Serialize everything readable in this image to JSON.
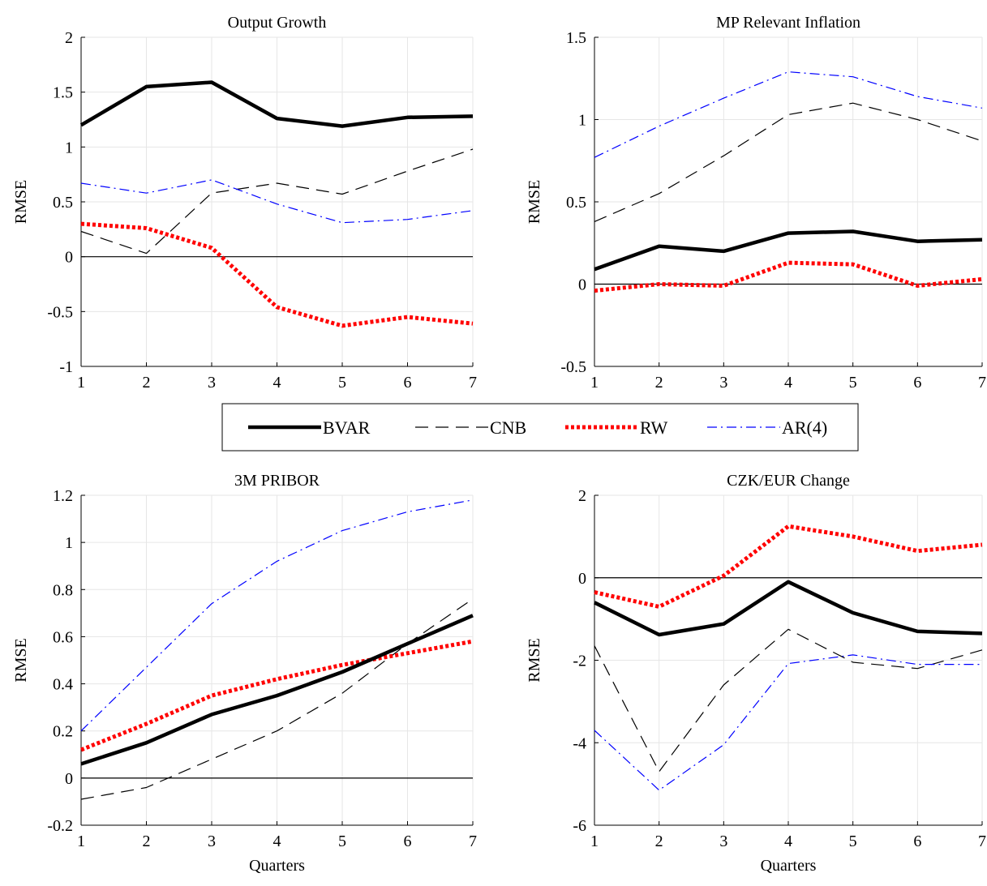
{
  "legend": {
    "entries": [
      "BVAR",
      "CNB",
      "RW",
      "AR(4)"
    ],
    "placement": "center between rows"
  },
  "series_styles": {
    "BVAR": {
      "color": "#000000",
      "dash": "solid",
      "weight": "thick"
    },
    "CNB": {
      "color": "#000000",
      "dash": "long-dash",
      "weight": "thin"
    },
    "RW": {
      "color": "#ff0000",
      "dash": "dotted",
      "weight": "thick"
    },
    "AR(4)": {
      "color": "#0000ff",
      "dash": "dash-dot",
      "weight": "thin"
    }
  },
  "chart_data": [
    {
      "type": "line",
      "title": "Output Growth",
      "xlabel": "",
      "ylabel": "RMSE",
      "x": [
        1,
        2,
        3,
        4,
        5,
        6,
        7
      ],
      "xlim": [
        1,
        7
      ],
      "ylim": [
        -1,
        2
      ],
      "yticks": [
        -1,
        -0.5,
        0,
        0.5,
        1,
        1.5,
        2
      ],
      "ytick_labels": [
        "-1",
        "-0.5",
        "0",
        "0.5",
        "1",
        "1.5",
        "2"
      ],
      "grid": true,
      "zero_line": true,
      "series": [
        {
          "name": "BVAR",
          "values": [
            1.2,
            1.55,
            1.59,
            1.26,
            1.19,
            1.27,
            1.28
          ]
        },
        {
          "name": "CNB",
          "values": [
            0.23,
            0.03,
            0.58,
            0.67,
            0.57,
            0.78,
            0.98
          ]
        },
        {
          "name": "RW",
          "values": [
            0.3,
            0.26,
            0.08,
            -0.46,
            -0.63,
            -0.55,
            -0.61
          ]
        },
        {
          "name": "AR(4)",
          "values": [
            0.67,
            0.58,
            0.7,
            0.48,
            0.31,
            0.34,
            0.42
          ]
        }
      ]
    },
    {
      "type": "line",
      "title": "MP Relevant Inflation",
      "xlabel": "",
      "ylabel": "RMSE",
      "x": [
        1,
        2,
        3,
        4,
        5,
        6,
        7
      ],
      "xlim": [
        1,
        7
      ],
      "ylim": [
        -0.5,
        1.5
      ],
      "yticks": [
        -0.5,
        0,
        0.5,
        1,
        1.5
      ],
      "ytick_labels": [
        "-0.5",
        "0",
        "0.5",
        "1",
        "1.5"
      ],
      "grid": true,
      "zero_line": true,
      "series": [
        {
          "name": "BVAR",
          "values": [
            0.09,
            0.23,
            0.2,
            0.31,
            0.32,
            0.26,
            0.27
          ]
        },
        {
          "name": "CNB",
          "values": [
            0.38,
            0.55,
            0.78,
            1.03,
            1.1,
            1.0,
            0.87
          ]
        },
        {
          "name": "RW",
          "values": [
            -0.04,
            0.0,
            -0.01,
            0.13,
            0.12,
            -0.01,
            0.03
          ]
        },
        {
          "name": "AR(4)",
          "values": [
            0.77,
            0.96,
            1.13,
            1.29,
            1.26,
            1.14,
            1.07
          ]
        }
      ]
    },
    {
      "type": "line",
      "title": "3M PRIBOR",
      "xlabel": "Quarters",
      "ylabel": "RMSE",
      "x": [
        1,
        2,
        3,
        4,
        5,
        6,
        7
      ],
      "xlim": [
        1,
        7
      ],
      "ylim": [
        -0.2,
        1.2
      ],
      "yticks": [
        -0.2,
        0,
        0.2,
        0.4,
        0.6,
        0.8,
        1,
        1.2
      ],
      "ytick_labels": [
        "-0.2",
        "0",
        "0.2",
        "0.4",
        "0.6",
        "0.8",
        "1",
        "1.2"
      ],
      "grid": true,
      "zero_line": true,
      "series": [
        {
          "name": "BVAR",
          "values": [
            0.06,
            0.15,
            0.27,
            0.35,
            0.45,
            0.57,
            0.69
          ]
        },
        {
          "name": "CNB",
          "values": [
            -0.09,
            -0.04,
            0.08,
            0.2,
            0.36,
            0.57,
            0.76
          ]
        },
        {
          "name": "RW",
          "values": [
            0.12,
            0.23,
            0.35,
            0.42,
            0.48,
            0.53,
            0.58
          ]
        },
        {
          "name": "AR(4)",
          "values": [
            0.2,
            0.47,
            0.74,
            0.92,
            1.05,
            1.13,
            1.18
          ]
        }
      ]
    },
    {
      "type": "line",
      "title": "CZK/EUR Change",
      "xlabel": "Quarters",
      "ylabel": "RMSE",
      "x": [
        1,
        2,
        3,
        4,
        5,
        6,
        7
      ],
      "xlim": [
        1,
        7
      ],
      "ylim": [
        -6,
        2
      ],
      "yticks": [
        -6,
        -4,
        -2,
        0,
        2
      ],
      "ytick_labels": [
        "-6",
        "-4",
        "-2",
        "0",
        "2"
      ],
      "grid": true,
      "zero_line": true,
      "series": [
        {
          "name": "BVAR",
          "values": [
            -0.6,
            -1.38,
            -1.12,
            -0.1,
            -0.85,
            -1.3,
            -1.35
          ]
        },
        {
          "name": "CNB",
          "values": [
            -1.65,
            -4.7,
            -2.6,
            -1.25,
            -2.05,
            -2.2,
            -1.75
          ]
        },
        {
          "name": "RW",
          "values": [
            -0.35,
            -0.7,
            0.05,
            1.25,
            1.0,
            0.65,
            0.8
          ]
        },
        {
          "name": "AR(4)",
          "values": [
            -3.7,
            -5.15,
            -4.05,
            -2.08,
            -1.87,
            -2.1,
            -2.1
          ]
        }
      ]
    }
  ]
}
